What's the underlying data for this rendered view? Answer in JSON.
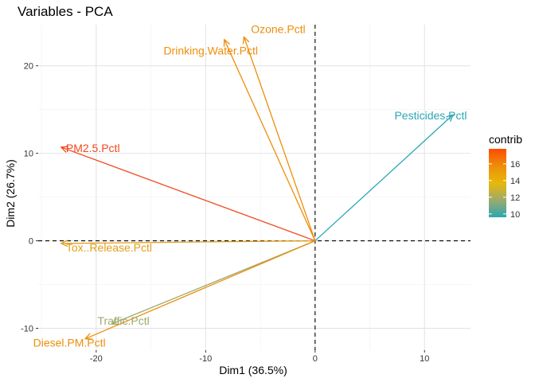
{
  "chart_data": {
    "type": "scatter",
    "subtype": "pca-variable-correlation-arrows",
    "title": "Variables - PCA",
    "xlabel": "Dim1 (36.5%)",
    "ylabel": "Dim2 (26.7%)",
    "xlim": [
      -25.3,
      14.2
    ],
    "ylim": [
      -12.5,
      24.7
    ],
    "xticks": [
      -20,
      -10,
      0,
      10
    ],
    "yticks": [
      -10,
      0,
      10,
      20
    ],
    "grid": true,
    "reference_lines": {
      "x": 0,
      "y": 0,
      "style": "dashed"
    },
    "variables": [
      {
        "name": "Ozone.Pctl",
        "x": -6.5,
        "y": 23.3,
        "contrib": 15.0,
        "color": "#ED8E0A"
      },
      {
        "name": "Drinking.Water.Pctl",
        "x": -8.3,
        "y": 23.0,
        "contrib": 15.0,
        "color": "#ED8E0A"
      },
      {
        "name": "Pesticides.Pctl",
        "x": 12.6,
        "y": 14.4,
        "contrib": 9.8,
        "color": "#2AA7B4"
      },
      {
        "name": "PM2.5.Pctl",
        "x": -23.2,
        "y": 10.7,
        "contrib": 17.8,
        "color": "#F2471D"
      },
      {
        "name": "Tox..Release.Pctl",
        "x": -23.2,
        "y": -0.3,
        "contrib": 14.3,
        "color": "#E39E1A"
      },
      {
        "name": "Traffic.Pctl",
        "x": -18.6,
        "y": -9.5,
        "contrib": 11.6,
        "color": "#9DAA6B"
      },
      {
        "name": "Diesel.PM.Pctl",
        "x": -21.0,
        "y": -11.2,
        "contrib": 14.8,
        "color": "#ED8E0A"
      }
    ],
    "legend": {
      "title": "contrib",
      "position": "right",
      "ticks": [
        10,
        12,
        14,
        16
      ],
      "range": [
        9.6,
        17.8
      ],
      "gradient": [
        "#2AA7B4",
        "#9DAA6B",
        "#E7B80A",
        "#ED8E0A",
        "#FF4A00"
      ]
    }
  }
}
